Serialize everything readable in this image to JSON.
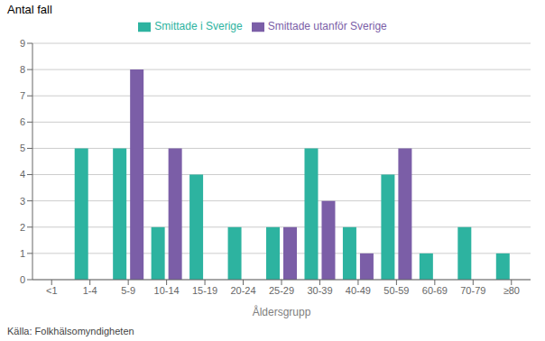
{
  "chart_data": {
    "type": "bar",
    "ylabel": "Antal fall",
    "xlabel": "Åldersgrupp",
    "source": "Källa: Folkhälsomyndigheten",
    "categories": [
      "<1",
      "1-4",
      "5-9",
      "10-14",
      "15-19",
      "20-24",
      "25-29",
      "30-39",
      "40-49",
      "50-59",
      "60-69",
      "70-79",
      "≥80"
    ],
    "series": [
      {
        "name": "Smittade i Sverige",
        "color": "#2db3a0",
        "values": [
          0,
          5,
          5,
          2,
          4,
          2,
          2,
          5,
          2,
          4,
          1,
          2,
          1
        ]
      },
      {
        "name": "Smittade utanför Sverige",
        "color": "#7b5ea7",
        "values": [
          0,
          0,
          8,
          5,
          0,
          0,
          2,
          3,
          1,
          5,
          0,
          0,
          0
        ]
      }
    ],
    "ylim": [
      0,
      9
    ],
    "yticks": [
      0,
      1,
      2,
      3,
      4,
      5,
      6,
      7,
      8,
      9
    ],
    "grid": true,
    "legend": "top"
  }
}
